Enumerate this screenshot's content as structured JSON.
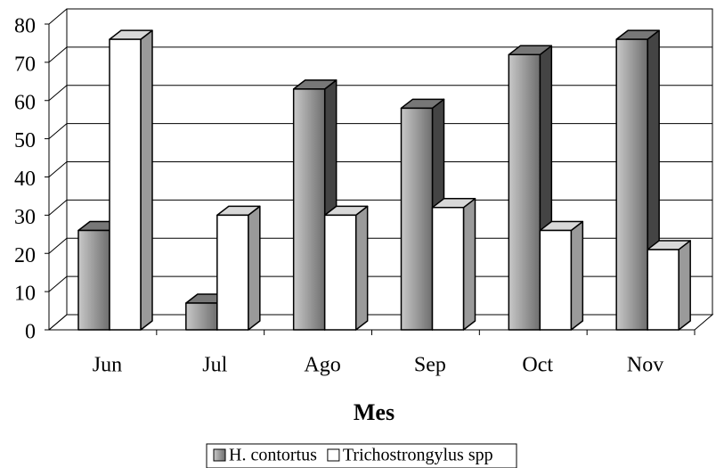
{
  "chart_data": {
    "type": "bar3d",
    "x_label": "Mes",
    "categories": [
      "Jun",
      "Jul",
      "Ago",
      "Sep",
      "Oct",
      "Nov"
    ],
    "series": [
      {
        "name": "H. contortus",
        "color": "#8c8c8c",
        "values": [
          26,
          7,
          63,
          58,
          72,
          76
        ]
      },
      {
        "name": "Trichostrongylus spp",
        "color": "#ffffff",
        "values": [
          76,
          30,
          30,
          32,
          26,
          21
        ]
      }
    ],
    "ylim": [
      0,
      80
    ],
    "yticks": [
      0,
      10,
      20,
      30,
      40,
      50,
      60,
      70,
      80
    ],
    "grid": true,
    "legend": "bottom"
  }
}
